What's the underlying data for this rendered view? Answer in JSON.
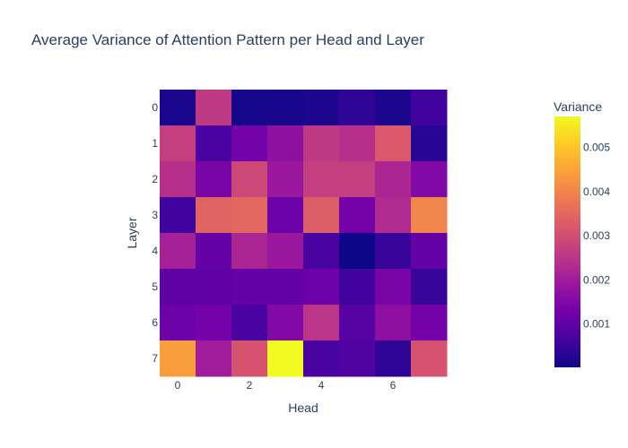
{
  "chart_data": {
    "type": "heatmap",
    "title": "Average Variance of Attention Pattern per Head and Layer",
    "xlabel": "Head",
    "ylabel": "Layer",
    "x": [
      0,
      1,
      2,
      3,
      4,
      5,
      6,
      7
    ],
    "y": [
      0,
      1,
      2,
      3,
      4,
      5,
      6,
      7
    ],
    "x_tick_labels": [
      "0",
      "2",
      "4",
      "6"
    ],
    "y_tick_labels": [
      "0",
      "1",
      "2",
      "3",
      "4",
      "5",
      "6",
      "7"
    ],
    "zmin": 2e-05,
    "zmax": 0.0057,
    "z": [
      [
        0.00018,
        0.0026,
        0.00012,
        0.00014,
        0.00022,
        0.00038,
        0.0002,
        0.0006
      ],
      [
        0.0027,
        0.0007,
        0.0013,
        0.0017,
        0.0026,
        0.0024,
        0.0032,
        0.0003
      ],
      [
        0.0024,
        0.0014,
        0.0029,
        0.0019,
        0.0027,
        0.0027,
        0.0022,
        0.0015
      ],
      [
        0.0006,
        0.0034,
        0.0035,
        0.0012,
        0.0033,
        0.0013,
        0.0023,
        0.004
      ],
      [
        0.0021,
        0.0011,
        0.0022,
        0.0019,
        0.0007,
        2e-05,
        0.0005,
        0.0011
      ],
      [
        0.001,
        0.001,
        0.0011,
        0.0011,
        0.0012,
        0.0006,
        0.0014,
        0.0005
      ],
      [
        0.0012,
        0.0013,
        0.0007,
        0.0015,
        0.0025,
        0.0009,
        0.0017,
        0.0013
      ],
      [
        0.0044,
        0.002,
        0.0031,
        0.0057,
        0.0007,
        0.0008,
        0.0004,
        0.0031
      ]
    ],
    "colorscale_name": "plasma",
    "colorbar": {
      "title": "Variance",
      "tickvals": [
        0.001,
        0.002,
        0.003,
        0.004,
        0.005
      ],
      "ticktext": [
        "0.001",
        "0.002",
        "0.003",
        "0.004",
        "0.005"
      ]
    },
    "grid": false,
    "legend": "colorbar-right"
  }
}
